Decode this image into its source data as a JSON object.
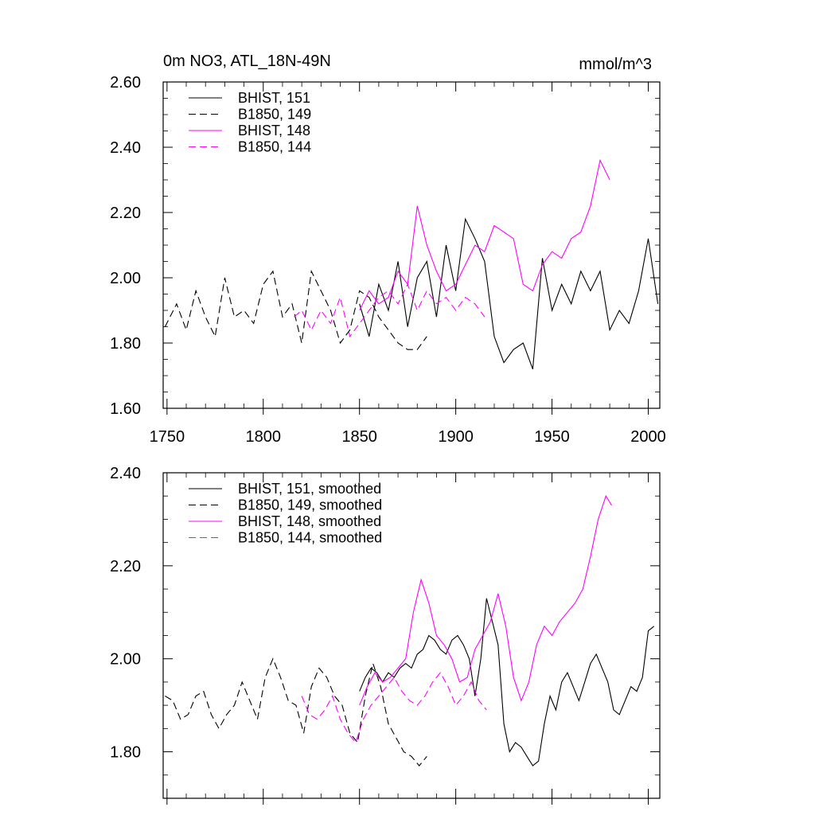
{
  "chart_data": [
    {
      "type": "line",
      "title": "0m NO3, ATL_18N-49N",
      "units_label": "mmol/m^3",
      "xlabel": "",
      "ylabel": "",
      "xlim": [
        1748,
        2006
      ],
      "ylim": [
        1.6,
        2.6
      ],
      "x_ticks": [
        1750,
        1800,
        1850,
        1900,
        1950,
        2000
      ],
      "x_tick_labels": [
        "1750",
        "1800",
        "1850",
        "1900",
        "1950",
        "2000"
      ],
      "y_ticks": [
        1.6,
        1.8,
        2.0,
        2.2,
        2.4,
        2.6
      ],
      "y_tick_labels": [
        "1.60",
        "1.80",
        "2.00",
        "2.20",
        "2.40",
        "2.60"
      ],
      "legend": "top-left",
      "series": [
        {
          "name": "BHIST, 151",
          "color": "#000000",
          "dash": "solid",
          "x": [
            1850,
            1855,
            1860,
            1865,
            1870,
            1875,
            1880,
            1885,
            1890,
            1895,
            1900,
            1905,
            1910,
            1915,
            1920,
            1925,
            1930,
            1935,
            1940,
            1945,
            1950,
            1955,
            1960,
            1965,
            1970,
            1975,
            1980,
            1985,
            1990,
            1995,
            2000,
            2005
          ],
          "y": [
            1.92,
            1.82,
            1.98,
            1.9,
            2.05,
            1.85,
            2.0,
            2.05,
            1.88,
            2.1,
            1.96,
            2.18,
            2.12,
            2.05,
            1.82,
            1.74,
            1.78,
            1.8,
            1.72,
            2.06,
            1.9,
            1.98,
            1.92,
            2.02,
            1.96,
            2.02,
            1.84,
            1.9,
            1.86,
            1.96,
            2.12,
            1.92
          ]
        },
        {
          "name": "B1850, 149",
          "color": "#000000",
          "dash": "dashed",
          "x": [
            1749,
            1755,
            1760,
            1765,
            1770,
            1775,
            1780,
            1785,
            1790,
            1795,
            1800,
            1805,
            1810,
            1815,
            1820,
            1825,
            1830,
            1835,
            1840,
            1845,
            1850,
            1855,
            1860,
            1865,
            1870,
            1875,
            1880,
            1885
          ],
          "y": [
            1.85,
            1.92,
            1.84,
            1.96,
            1.88,
            1.82,
            2.0,
            1.88,
            1.9,
            1.86,
            1.98,
            2.02,
            1.88,
            1.92,
            1.8,
            2.02,
            1.96,
            1.9,
            1.8,
            1.84,
            1.96,
            1.94,
            1.88,
            1.84,
            1.8,
            1.78,
            1.78,
            1.82
          ]
        },
        {
          "name": "BHIST, 148",
          "color": "#ff00ff",
          "dash": "solid",
          "x": [
            1850,
            1855,
            1860,
            1865,
            1870,
            1875,
            1880,
            1885,
            1890,
            1895,
            1900,
            1905,
            1910,
            1915,
            1920,
            1925,
            1930,
            1935,
            1940,
            1945,
            1950,
            1955,
            1960,
            1965,
            1970,
            1975,
            1980
          ],
          "y": [
            1.9,
            1.96,
            1.92,
            1.94,
            2.02,
            1.98,
            2.22,
            2.1,
            2.02,
            1.96,
            1.98,
            2.04,
            2.1,
            2.08,
            2.16,
            2.14,
            2.12,
            1.98,
            1.96,
            2.04,
            2.08,
            2.06,
            2.12,
            2.14,
            2.22,
            2.36,
            2.3
          ]
        },
        {
          "name": "B1850, 144",
          "color": "#ff00ff",
          "dash": "dashed",
          "x": [
            1816,
            1820,
            1825,
            1830,
            1835,
            1840,
            1845,
            1850,
            1855,
            1860,
            1865,
            1870,
            1875,
            1880,
            1885,
            1890,
            1895,
            1900,
            1905,
            1910,
            1915
          ],
          "y": [
            1.88,
            1.9,
            1.84,
            1.9,
            1.86,
            1.94,
            1.82,
            1.86,
            1.9,
            1.94,
            1.96,
            1.92,
            1.98,
            1.9,
            1.96,
            1.92,
            1.94,
            1.9,
            1.94,
            1.92,
            1.88
          ]
        }
      ]
    },
    {
      "type": "line",
      "title": "",
      "xlabel": "",
      "ylabel": "",
      "xlim": [
        1748,
        2006
      ],
      "ylim": [
        1.7,
        2.4
      ],
      "x_ticks": [
        1750,
        1800,
        1850,
        1900,
        1950,
        2000
      ],
      "y_ticks": [
        1.8,
        2.0,
        2.2,
        2.4
      ],
      "y_tick_labels": [
        "1.80",
        "2.00",
        "2.20",
        "2.40"
      ],
      "legend": "top-left",
      "series": [
        {
          "name": "BHIST, 151, smoothed",
          "color": "#000000",
          "dash": "solid",
          "x": [
            1850,
            1853,
            1856,
            1859,
            1862,
            1865,
            1868,
            1871,
            1874,
            1877,
            1880,
            1883,
            1886,
            1889,
            1892,
            1895,
            1898,
            1901,
            1904,
            1907,
            1910,
            1913,
            1916,
            1919,
            1922,
            1925,
            1928,
            1931,
            1934,
            1937,
            1940,
            1943,
            1946,
            1949,
            1952,
            1955,
            1958,
            1961,
            1964,
            1967,
            1970,
            1973,
            1976,
            1979,
            1982,
            1985,
            1988,
            1991,
            1994,
            1997,
            2000,
            2003
          ],
          "y": [
            1.93,
            1.96,
            1.98,
            1.97,
            1.95,
            1.97,
            1.96,
            1.98,
            1.99,
            1.98,
            2.01,
            2.02,
            2.05,
            2.04,
            2.02,
            2.01,
            2.04,
            2.05,
            2.03,
            2.0,
            1.92,
            2.0,
            2.13,
            2.08,
            2.03,
            1.86,
            1.8,
            1.82,
            1.81,
            1.79,
            1.77,
            1.78,
            1.86,
            1.92,
            1.89,
            1.95,
            1.97,
            1.94,
            1.91,
            1.95,
            1.99,
            2.01,
            1.98,
            1.95,
            1.89,
            1.88,
            1.91,
            1.94,
            1.93,
            1.96,
            2.06,
            2.07
          ]
        },
        {
          "name": "B1850, 149, smoothed",
          "color": "#000000",
          "dash": "dashed",
          "x": [
            1749,
            1753,
            1757,
            1761,
            1765,
            1769,
            1773,
            1777,
            1781,
            1785,
            1789,
            1793,
            1797,
            1801,
            1805,
            1809,
            1813,
            1817,
            1821,
            1825,
            1829,
            1833,
            1837,
            1841,
            1845,
            1849,
            1853,
            1857,
            1861,
            1865,
            1869,
            1873,
            1877,
            1881,
            1885
          ],
          "y": [
            1.92,
            1.91,
            1.87,
            1.88,
            1.92,
            1.93,
            1.88,
            1.85,
            1.88,
            1.9,
            1.95,
            1.91,
            1.87,
            1.96,
            2.0,
            1.96,
            1.91,
            1.9,
            1.84,
            1.94,
            1.98,
            1.96,
            1.92,
            1.9,
            1.84,
            1.82,
            1.92,
            1.99,
            1.94,
            1.86,
            1.83,
            1.8,
            1.79,
            1.77,
            1.79
          ]
        },
        {
          "name": "BHIST, 148, smoothed",
          "color": "#ff00ff",
          "dash": "solid",
          "x": [
            1850,
            1854,
            1858,
            1862,
            1866,
            1870,
            1874,
            1878,
            1882,
            1886,
            1890,
            1894,
            1898,
            1902,
            1906,
            1910,
            1914,
            1918,
            1922,
            1926,
            1930,
            1934,
            1938,
            1942,
            1946,
            1950,
            1954,
            1958,
            1962,
            1966,
            1970,
            1974,
            1978,
            1981
          ],
          "y": [
            1.9,
            1.94,
            1.97,
            1.95,
            1.96,
            1.98,
            2.0,
            2.1,
            2.17,
            2.12,
            2.05,
            2.03,
            2.0,
            1.95,
            1.96,
            2.02,
            2.05,
            2.08,
            2.14,
            2.07,
            1.96,
            1.91,
            1.95,
            2.03,
            2.07,
            2.05,
            2.08,
            2.1,
            2.12,
            2.15,
            2.22,
            2.3,
            2.35,
            2.33
          ]
        },
        {
          "name": "B1850, 144, smoothed",
          "color": "#ff00ff",
          "dash": "dashed",
          "x": [
            1820,
            1824,
            1828,
            1832,
            1836,
            1840,
            1844,
            1848,
            1852,
            1856,
            1860,
            1864,
            1868,
            1872,
            1876,
            1880,
            1884,
            1888,
            1892,
            1896,
            1900,
            1904,
            1908,
            1912,
            1916
          ],
          "y": [
            1.92,
            1.88,
            1.87,
            1.89,
            1.92,
            1.87,
            1.84,
            1.82,
            1.87,
            1.9,
            1.92,
            1.94,
            1.96,
            1.93,
            1.91,
            1.9,
            1.92,
            1.95,
            1.97,
            1.94,
            1.9,
            1.92,
            1.95,
            1.91,
            1.89
          ]
        }
      ]
    }
  ]
}
